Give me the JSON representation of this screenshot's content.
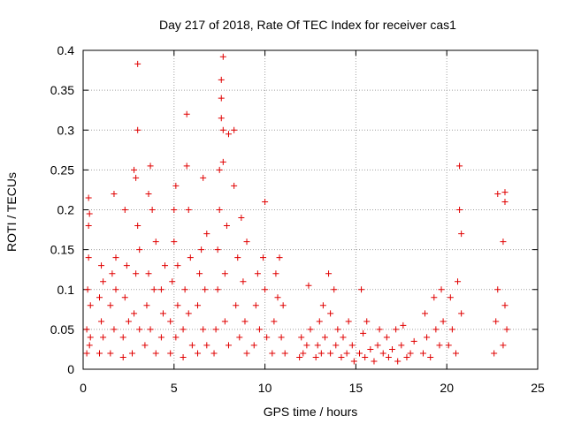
{
  "chart_data": {
    "type": "scatter",
    "title": "Day 217 of 2018, Rate Of TEC Index for receiver cas1",
    "xlabel": "GPS time / hours",
    "ylabel": "ROTI / TECUs",
    "xlim": [
      0,
      25
    ],
    "ylim": [
      0,
      0.4
    ],
    "x_ticks": [
      0,
      5,
      10,
      15,
      20,
      25
    ],
    "x_tick_labels": [
      "0",
      "5",
      "10",
      "15",
      "20",
      "25"
    ],
    "y_ticks": [
      0,
      0.05,
      0.1,
      0.15,
      0.2,
      0.25,
      0.3,
      0.35,
      0.4
    ],
    "y_tick_labels": [
      "0",
      "0.05",
      "0.1",
      "0.15",
      "0.2",
      "0.25",
      "0.3",
      "0.35",
      "0.4"
    ],
    "grid": true,
    "marker": "plus",
    "color": "#e00000",
    "series": [
      {
        "name": "cas1",
        "points": [
          [
            0.2,
            0.02
          ],
          [
            0.2,
            0.05
          ],
          [
            0.25,
            0.1
          ],
          [
            0.3,
            0.14
          ],
          [
            0.3,
            0.18
          ],
          [
            0.3,
            0.215
          ],
          [
            0.35,
            0.195
          ],
          [
            0.35,
            0.03
          ],
          [
            0.4,
            0.08
          ],
          [
            0.4,
            0.04
          ],
          [
            0.9,
            0.02
          ],
          [
            0.9,
            0.09
          ],
          [
            1.0,
            0.13
          ],
          [
            1.0,
            0.06
          ],
          [
            1.1,
            0.04
          ],
          [
            1.1,
            0.11
          ],
          [
            1.5,
            0.02
          ],
          [
            1.5,
            0.08
          ],
          [
            1.6,
            0.12
          ],
          [
            1.7,
            0.22
          ],
          [
            1.7,
            0.05
          ],
          [
            1.8,
            0.1
          ],
          [
            1.8,
            0.14
          ],
          [
            2.2,
            0.015
          ],
          [
            2.2,
            0.04
          ],
          [
            2.3,
            0.2
          ],
          [
            2.3,
            0.09
          ],
          [
            2.4,
            0.13
          ],
          [
            2.5,
            0.06
          ],
          [
            2.7,
            0.02
          ],
          [
            2.8,
            0.07
          ],
          [
            2.8,
            0.25
          ],
          [
            2.9,
            0.24
          ],
          [
            2.9,
            0.12
          ],
          [
            3.0,
            0.3
          ],
          [
            3.0,
            0.383
          ],
          [
            3.0,
            0.18
          ],
          [
            3.1,
            0.05
          ],
          [
            3.1,
            0.15
          ],
          [
            3.4,
            0.03
          ],
          [
            3.5,
            0.08
          ],
          [
            3.6,
            0.12
          ],
          [
            3.6,
            0.22
          ],
          [
            3.7,
            0.255
          ],
          [
            3.7,
            0.05
          ],
          [
            3.8,
            0.2
          ],
          [
            3.9,
            0.1
          ],
          [
            4.0,
            0.16
          ],
          [
            4.0,
            0.02
          ],
          [
            4.3,
            0.04
          ],
          [
            4.3,
            0.1
          ],
          [
            4.4,
            0.07
          ],
          [
            4.5,
            0.13
          ],
          [
            4.8,
            0.02
          ],
          [
            4.8,
            0.06
          ],
          [
            4.9,
            0.11
          ],
          [
            5.0,
            0.16
          ],
          [
            5.0,
            0.2
          ],
          [
            5.1,
            0.23
          ],
          [
            5.1,
            0.04
          ],
          [
            5.2,
            0.13
          ],
          [
            5.2,
            0.08
          ],
          [
            5.5,
            0.015
          ],
          [
            5.5,
            0.05
          ],
          [
            5.6,
            0.1
          ],
          [
            5.7,
            0.32
          ],
          [
            5.7,
            0.255
          ],
          [
            5.8,
            0.2
          ],
          [
            5.8,
            0.07
          ],
          [
            5.9,
            0.14
          ],
          [
            6.0,
            0.03
          ],
          [
            6.3,
            0.02
          ],
          [
            6.3,
            0.08
          ],
          [
            6.4,
            0.12
          ],
          [
            6.5,
            0.15
          ],
          [
            6.6,
            0.24
          ],
          [
            6.6,
            0.05
          ],
          [
            6.7,
            0.1
          ],
          [
            6.8,
            0.17
          ],
          [
            6.8,
            0.03
          ],
          [
            7.2,
            0.02
          ],
          [
            7.3,
            0.05
          ],
          [
            7.4,
            0.1
          ],
          [
            7.4,
            0.15
          ],
          [
            7.5,
            0.2
          ],
          [
            7.5,
            0.25
          ],
          [
            7.6,
            0.315
          ],
          [
            7.6,
            0.34
          ],
          [
            7.6,
            0.363
          ],
          [
            7.7,
            0.392
          ],
          [
            7.7,
            0.3
          ],
          [
            7.7,
            0.26
          ],
          [
            7.8,
            0.12
          ],
          [
            7.8,
            0.06
          ],
          [
            7.9,
            0.18
          ],
          [
            8.0,
            0.295
          ],
          [
            8.0,
            0.03
          ],
          [
            8.3,
            0.3
          ],
          [
            8.3,
            0.23
          ],
          [
            8.4,
            0.08
          ],
          [
            8.5,
            0.14
          ],
          [
            8.6,
            0.04
          ],
          [
            8.7,
            0.19
          ],
          [
            8.8,
            0.11
          ],
          [
            8.9,
            0.06
          ],
          [
            9.0,
            0.16
          ],
          [
            9.0,
            0.02
          ],
          [
            9.4,
            0.03
          ],
          [
            9.5,
            0.08
          ],
          [
            9.6,
            0.12
          ],
          [
            9.7,
            0.05
          ],
          [
            9.9,
            0.14
          ],
          [
            10.0,
            0.21
          ],
          [
            10.0,
            0.1
          ],
          [
            10.1,
            0.04
          ],
          [
            10.4,
            0.02
          ],
          [
            10.5,
            0.06
          ],
          [
            10.6,
            0.12
          ],
          [
            10.7,
            0.09
          ],
          [
            10.8,
            0.14
          ],
          [
            10.9,
            0.04
          ],
          [
            11.0,
            0.08
          ],
          [
            11.1,
            0.02
          ],
          [
            11.9,
            0.015
          ],
          [
            12.0,
            0.04
          ],
          [
            12.1,
            0.02
          ],
          [
            12.3,
            0.03
          ],
          [
            12.4,
            0.105
          ],
          [
            12.5,
            0.05
          ],
          [
            12.8,
            0.015
          ],
          [
            12.9,
            0.03
          ],
          [
            13.0,
            0.06
          ],
          [
            13.1,
            0.02
          ],
          [
            13.2,
            0.08
          ],
          [
            13.3,
            0.04
          ],
          [
            13.5,
            0.12
          ],
          [
            13.6,
            0.07
          ],
          [
            13.6,
            0.02
          ],
          [
            13.8,
            0.1
          ],
          [
            13.9,
            0.03
          ],
          [
            14.0,
            0.05
          ],
          [
            14.2,
            0.015
          ],
          [
            14.3,
            0.04
          ],
          [
            14.5,
            0.02
          ],
          [
            14.6,
            0.06
          ],
          [
            14.8,
            0.03
          ],
          [
            14.9,
            0.01
          ],
          [
            15.2,
            0.02
          ],
          [
            15.3,
            0.1
          ],
          [
            15.4,
            0.045
          ],
          [
            15.5,
            0.015
          ],
          [
            15.6,
            0.06
          ],
          [
            15.8,
            0.025
          ],
          [
            16.0,
            0.01
          ],
          [
            16.2,
            0.03
          ],
          [
            16.3,
            0.05
          ],
          [
            16.5,
            0.02
          ],
          [
            16.7,
            0.04
          ],
          [
            16.8,
            0.015
          ],
          [
            17.0,
            0.025
          ],
          [
            17.2,
            0.05
          ],
          [
            17.3,
            0.01
          ],
          [
            17.5,
            0.03
          ],
          [
            17.6,
            0.055
          ],
          [
            17.8,
            0.015
          ],
          [
            18.0,
            0.02
          ],
          [
            18.2,
            0.035
          ],
          [
            18.7,
            0.02
          ],
          [
            18.8,
            0.07
          ],
          [
            18.9,
            0.04
          ],
          [
            19.1,
            0.015
          ],
          [
            19.3,
            0.09
          ],
          [
            19.4,
            0.05
          ],
          [
            19.6,
            0.03
          ],
          [
            19.7,
            0.1
          ],
          [
            19.8,
            0.06
          ],
          [
            20.1,
            0.03
          ],
          [
            20.2,
            0.09
          ],
          [
            20.3,
            0.05
          ],
          [
            20.5,
            0.02
          ],
          [
            20.6,
            0.11
          ],
          [
            20.7,
            0.2
          ],
          [
            20.7,
            0.255
          ],
          [
            20.8,
            0.17
          ],
          [
            20.8,
            0.07
          ],
          [
            22.6,
            0.02
          ],
          [
            22.7,
            0.06
          ],
          [
            22.8,
            0.22
          ],
          [
            22.8,
            0.1
          ],
          [
            23.1,
            0.03
          ],
          [
            23.1,
            0.16
          ],
          [
            23.2,
            0.21
          ],
          [
            23.2,
            0.222
          ],
          [
            23.2,
            0.08
          ],
          [
            23.3,
            0.05
          ]
        ]
      }
    ]
  }
}
